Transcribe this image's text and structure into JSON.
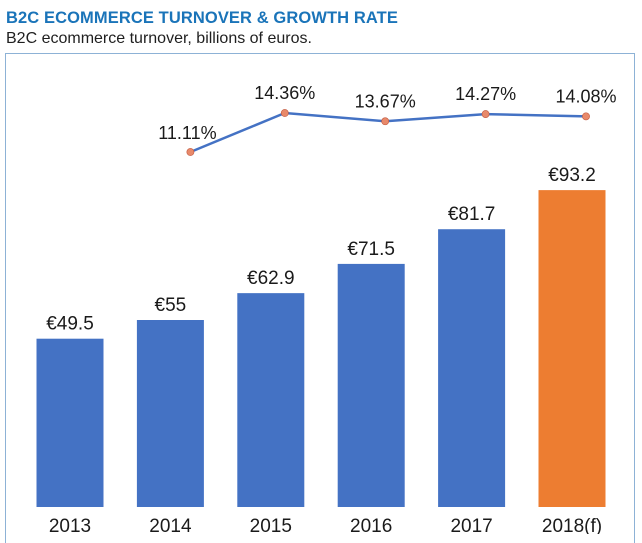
{
  "header": {
    "title": "B2C ECOMMERCE TURNOVER & GROWTH RATE",
    "subtitle": "B2C ecommerce turnover, billions of euros."
  },
  "chart_data": {
    "type": "bar",
    "categories": [
      "2013",
      "2014",
      "2015",
      "2016",
      "2017",
      "2018(f)"
    ],
    "series": [
      {
        "type": "bar",
        "values": [
          49.5,
          55,
          62.9,
          71.5,
          81.7,
          93.2
        ],
        "labels": [
          "€49.5",
          "€55",
          "€62.9",
          "€71.5",
          "€81.7",
          "€93.2"
        ],
        "colors": [
          "#4472c4",
          "#4472c4",
          "#4472c4",
          "#4472c4",
          "#4472c4",
          "#ed7d31"
        ]
      },
      {
        "type": "line",
        "values": [
          null,
          11.11,
          14.36,
          13.67,
          14.27,
          14.08
        ],
        "labels": [
          "",
          "11.11%",
          "14.36%",
          "13.67%",
          "14.27%",
          "14.08%"
        ],
        "line_color": "#4472c4",
        "marker_color": "#e8896a"
      }
    ],
    "grid": false,
    "legend": "none"
  }
}
